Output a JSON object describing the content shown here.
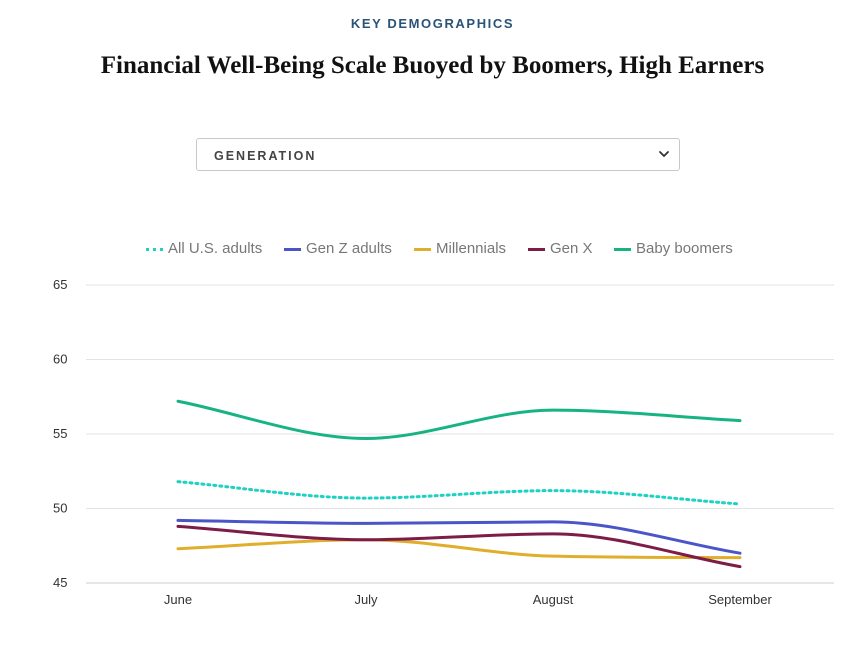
{
  "header": {
    "eyebrow": "KEY DEMOGRAPHICS",
    "title": "Financial Well-Being Scale Buoyed by Boomers, High Earners"
  },
  "filter": {
    "selected": "GENERATION",
    "icon": "chevron-down-icon"
  },
  "chart_data": {
    "type": "line",
    "categories": [
      "June",
      "July",
      "August",
      "September"
    ],
    "ylim": [
      45,
      65
    ],
    "yticks": [
      45,
      50,
      55,
      60,
      65
    ],
    "grid": true,
    "legend_position": "top-center",
    "series": [
      {
        "name": "All U.S. adults",
        "color": "#1fd1c0",
        "dash": "dotted",
        "values": [
          51.8,
          50.7,
          51.2,
          50.3
        ]
      },
      {
        "name": "Gen Z adults",
        "color": "#4a55c8",
        "dash": "solid",
        "values": [
          49.2,
          49.0,
          49.1,
          47.0
        ]
      },
      {
        "name": "Millennials",
        "color": "#e0ae2a",
        "dash": "solid",
        "values": [
          47.3,
          47.9,
          46.8,
          46.7
        ]
      },
      {
        "name": "Gen X",
        "color": "#7e1c48",
        "dash": "solid",
        "values": [
          48.8,
          47.9,
          48.3,
          46.1
        ]
      },
      {
        "name": "Baby boomers",
        "color": "#17b383",
        "dash": "solid",
        "values": [
          57.2,
          54.7,
          56.6,
          55.9
        ]
      }
    ]
  }
}
